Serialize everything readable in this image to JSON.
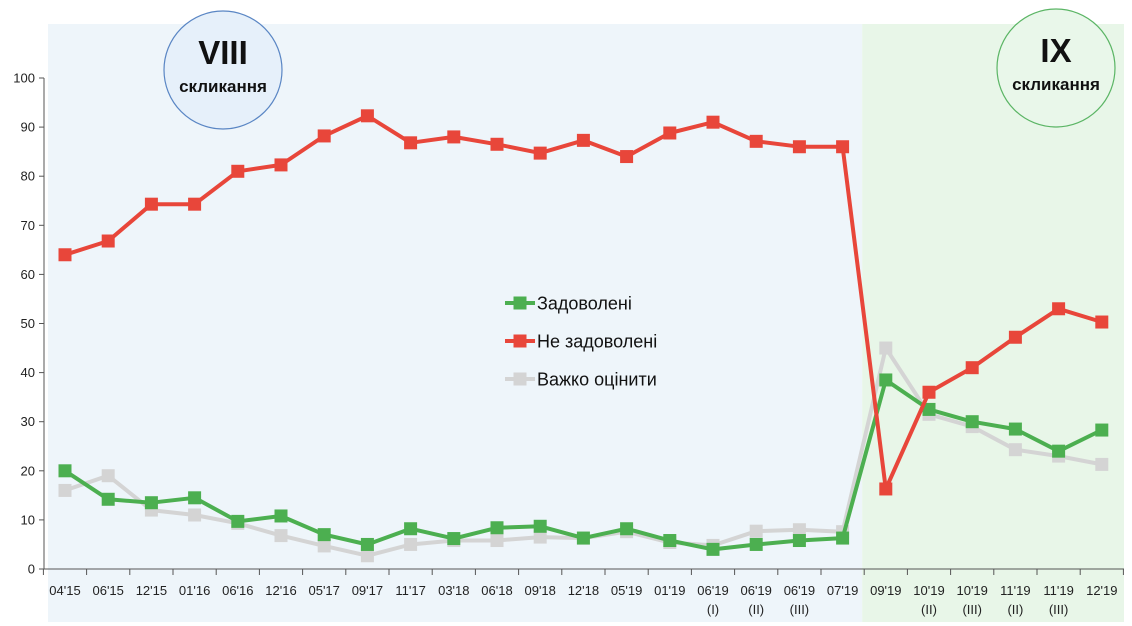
{
  "chart_data": {
    "type": "line",
    "categories": [
      {
        "label": "04'15",
        "sub": ""
      },
      {
        "label": "06'15",
        "sub": ""
      },
      {
        "label": "12'15",
        "sub": ""
      },
      {
        "label": "01'16",
        "sub": ""
      },
      {
        "label": "06'16",
        "sub": ""
      },
      {
        "label": "12'16",
        "sub": ""
      },
      {
        "label": "05'17",
        "sub": ""
      },
      {
        "label": "09'17",
        "sub": ""
      },
      {
        "label": "11'17",
        "sub": ""
      },
      {
        "label": "03'18",
        "sub": ""
      },
      {
        "label": "06'18",
        "sub": ""
      },
      {
        "label": "09'18",
        "sub": ""
      },
      {
        "label": "12'18",
        "sub": ""
      },
      {
        "label": "05'19",
        "sub": ""
      },
      {
        "label": "01'19",
        "sub": ""
      },
      {
        "label": "06'19",
        "sub": "(I)"
      },
      {
        "label": "06'19",
        "sub": "(II)"
      },
      {
        "label": "06'19",
        "sub": "(III)"
      },
      {
        "label": "07'19",
        "sub": ""
      },
      {
        "label": "09'19",
        "sub": ""
      },
      {
        "label": "10'19",
        "sub": "(II)"
      },
      {
        "label": "10'19",
        "sub": "(III)"
      },
      {
        "label": "11'19",
        "sub": "(II)"
      },
      {
        "label": "11'19",
        "sub": "(III)"
      },
      {
        "label": "12'19",
        "sub": ""
      }
    ],
    "series": [
      {
        "name": "Задоволені",
        "color": "#4caf50",
        "values": [
          20,
          14.2,
          13.5,
          14.5,
          9.7,
          10.8,
          7,
          5,
          8.2,
          6.2,
          8.4,
          8.7,
          6.3,
          8.2,
          5.8,
          4,
          5,
          5.8,
          6.3,
          38.5,
          32.5,
          30,
          28.5,
          24,
          28.3
        ]
      },
      {
        "name": "Не задоволені",
        "color": "#e8463a",
        "values": [
          64,
          66.8,
          74.3,
          74.3,
          81,
          82.3,
          88.2,
          92.3,
          86.8,
          88,
          86.5,
          84.7,
          87.3,
          84,
          88.8,
          91,
          87.1,
          86,
          86,
          16.3,
          36,
          41,
          47.2,
          53,
          50.3
        ]
      },
      {
        "name": "Важко оцінити",
        "color": "#d4d4d4",
        "values": [
          16,
          19,
          12,
          11,
          9.3,
          6.8,
          4.7,
          2.7,
          5,
          5.8,
          5.8,
          6.5,
          6.3,
          7.6,
          5.4,
          4.8,
          7.7,
          8,
          7.6,
          45,
          31.5,
          29,
          24.3,
          23,
          21.3
        ]
      }
    ],
    "ylim": [
      0,
      100
    ],
    "yticks": [
      0,
      10,
      20,
      30,
      40,
      50,
      60,
      70,
      80,
      90,
      100
    ],
    "legend_position": "center",
    "grid": false,
    "periods": [
      {
        "title": "VIII",
        "subtitle": "скликання",
        "background": "#eef5fa",
        "circle_fill": "#e6f0fa",
        "circle_stroke": "#5a86c4"
      },
      {
        "title": "IX",
        "subtitle": "скликання",
        "background": "#e8f6e8",
        "circle_fill": "#e9f7ea",
        "circle_stroke": "#5bb565"
      }
    ]
  }
}
